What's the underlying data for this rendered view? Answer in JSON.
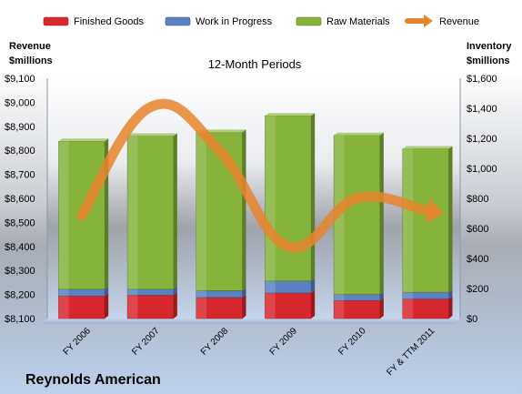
{
  "chart_data": {
    "type": "bar",
    "stacked": true,
    "subtitle": "12-Month Periods",
    "company": "Reynolds American",
    "categories": [
      "FY 2006",
      "FY 2007",
      "FY 2008",
      "FY 2009",
      "FY 2010",
      "FY & TTM 2011"
    ],
    "series": [
      {
        "name": "Finished Goods",
        "axis": "right",
        "color": "#d9272e",
        "values": [
          150,
          155,
          140,
          170,
          120,
          130
        ]
      },
      {
        "name": "Work in Progress",
        "axis": "right",
        "color": "#5b82c0",
        "values": [
          45,
          40,
          45,
          80,
          40,
          45
        ]
      },
      {
        "name": "Raw Materials",
        "axis": "right",
        "color": "#86b33a",
        "values": [
          985,
          1020,
          1055,
          1100,
          1060,
          955
        ]
      }
    ],
    "line": {
      "name": "Revenue",
      "axis": "left",
      "color": "#e8842c",
      "values": [
        8530,
        8980,
        8800,
        8400,
        8600,
        8550
      ]
    },
    "left_axis": {
      "label_line1": "Revenue",
      "label_line2": "$millions",
      "ticks": [
        "$8,100",
        "$8,200",
        "$8,300",
        "$8,400",
        "$8,500",
        "$8,600",
        "$8,700",
        "$8,800",
        "$8,900",
        "$9,000",
        "$9,100"
      ],
      "min": 8100,
      "max": 9100
    },
    "right_axis": {
      "label_line1": "Inventory",
      "label_line2": "$millions",
      "ticks": [
        "$0",
        "$200",
        "$400",
        "$600",
        "$800",
        "$1,000",
        "$1,200",
        "$1,400",
        "$1,600"
      ],
      "min": 0,
      "max": 1600
    },
    "legend": {
      "position": "top"
    },
    "grid": false
  }
}
